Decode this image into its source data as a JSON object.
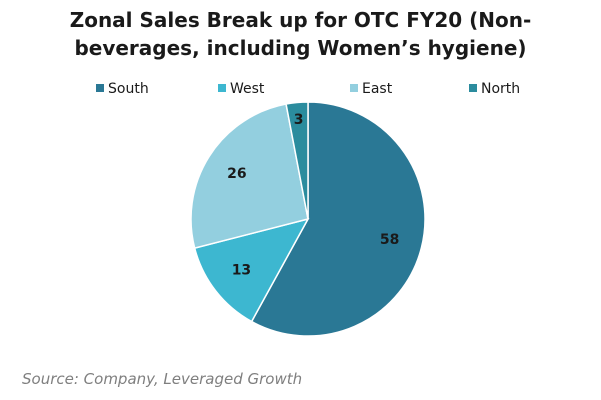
{
  "chart_data": {
    "type": "pie",
    "title": "Zonal Sales Break up for OTC FY20 (Non-beverages, including Women’s hygiene)",
    "categories": [
      "South",
      "West",
      "East",
      "North"
    ],
    "values": [
      58,
      13,
      26,
      3
    ],
    "colors": [
      "#2a7895",
      "#3db7d0",
      "#93cfdf",
      "#2b8c9e"
    ],
    "legend": "top",
    "source": "Source: Company, Leveraged Growth"
  }
}
